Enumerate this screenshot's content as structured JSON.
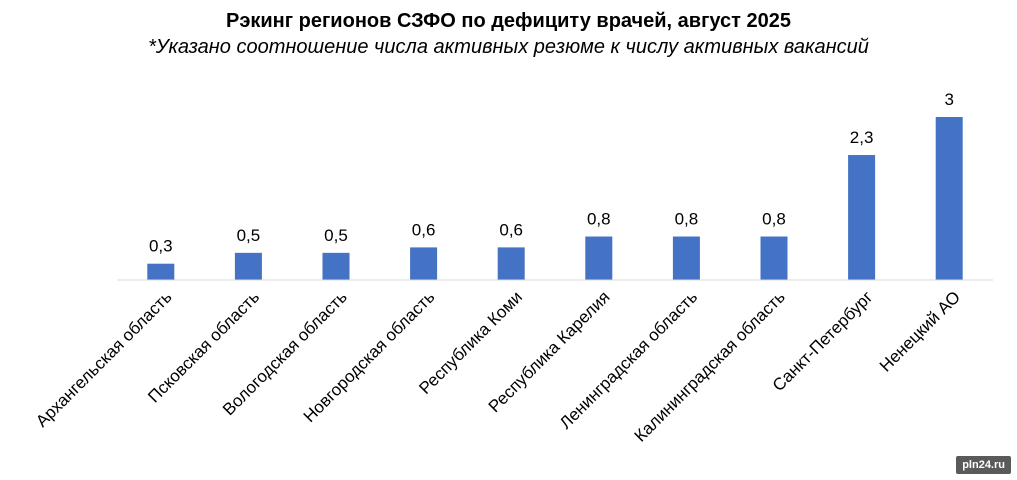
{
  "chart_data": {
    "type": "bar",
    "title": "Рэкинг регионов СЗФО по дефициту врачей, август 2025",
    "subtitle": "*Указано соотношение числа активных резюме к числу активных вакансий",
    "categories": [
      "Архангельская область",
      "Псковская область",
      "Вологодская область",
      "Новгородская область",
      "Республика Коми",
      "Республика Карелия",
      "Ленинградская область",
      "Калининградская  область",
      "Санкт-Петербург",
      "Ненецкий АО"
    ],
    "values": [
      0.3,
      0.5,
      0.5,
      0.6,
      0.6,
      0.8,
      0.8,
      0.8,
      2.3,
      3
    ],
    "data_labels": [
      "0,3",
      "0,5",
      "0,5",
      "0,6",
      "0,6",
      "0,8",
      "0,8",
      "0,8",
      "2,3",
      "3"
    ],
    "ylim": [
      0,
      3
    ],
    "grid": false,
    "bar_color": "#4472C4",
    "axis_color": "#d9d9d9"
  },
  "watermark": "pln24.ru"
}
